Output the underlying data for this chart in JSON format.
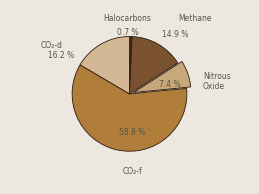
{
  "labels": [
    "Halocarbons",
    "Methane",
    "Nitrous\nOxide",
    "CO₂-f",
    "CO₂-d"
  ],
  "values": [
    0.7,
    14.9,
    7.4,
    58.8,
    16.2
  ],
  "colors": [
    "#3d2b1f",
    "#7a5230",
    "#c8a87a",
    "#b07d3a",
    "#d4b896"
  ],
  "explode": [
    0,
    0,
    0.07,
    0,
    0
  ],
  "background_color": "#ede8df",
  "label_fontsize": 5.5,
  "startangle": 90
}
